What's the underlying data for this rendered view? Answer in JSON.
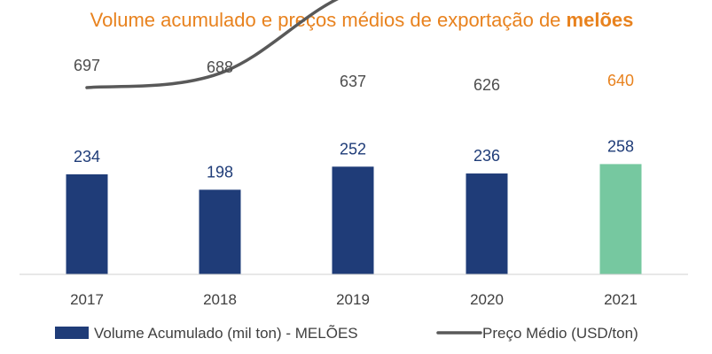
{
  "chart_data": {
    "type": "bar",
    "title": "Volume acumulado e preços médios de exportação de ",
    "title_emphasis": "melões",
    "categories": [
      "2017",
      "2018",
      "2019",
      "2020",
      "2021"
    ],
    "series": [
      {
        "name": "Volume Acumulado (mil ton) - MELÕES",
        "type": "bar",
        "values": [
          234,
          198,
          252,
          236,
          258
        ],
        "color": "#1f3c78",
        "highlight_color": "#76c8a0",
        "highlight_index": 4
      },
      {
        "name": "Preço Médio (USD/ton)",
        "type": "line",
        "values": [
          697,
          688,
          637,
          626,
          640
        ],
        "color": "#595959",
        "highlight_color": "#e8821e",
        "highlight_from_index": 3
      }
    ],
    "legend_position": "bottom",
    "grid": false,
    "ylim_bar": [
      0,
      300
    ]
  }
}
